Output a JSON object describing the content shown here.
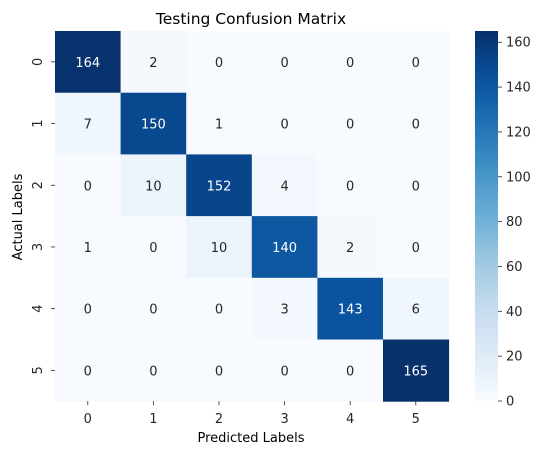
{
  "chart_data": {
    "type": "heatmap",
    "title": "Testing Confusion Matrix",
    "xlabel": "Predicted Labels",
    "ylabel": "Actual Labels",
    "x_categories": [
      "0",
      "1",
      "2",
      "3",
      "4",
      "5"
    ],
    "y_categories": [
      "0",
      "1",
      "2",
      "3",
      "4",
      "5"
    ],
    "values": [
      [
        164,
        2,
        0,
        0,
        0,
        0
      ],
      [
        7,
        150,
        1,
        0,
        0,
        0
      ],
      [
        0,
        10,
        152,
        4,
        0,
        0
      ],
      [
        1,
        0,
        10,
        140,
        2,
        0
      ],
      [
        0,
        0,
        0,
        3,
        143,
        6
      ],
      [
        0,
        0,
        0,
        0,
        0,
        165
      ]
    ],
    "colormap": "Blues",
    "colorbar": {
      "range": [
        0,
        165
      ],
      "ticks": [
        0,
        20,
        40,
        60,
        80,
        100,
        120,
        140,
        160
      ]
    },
    "annotations": true
  }
}
